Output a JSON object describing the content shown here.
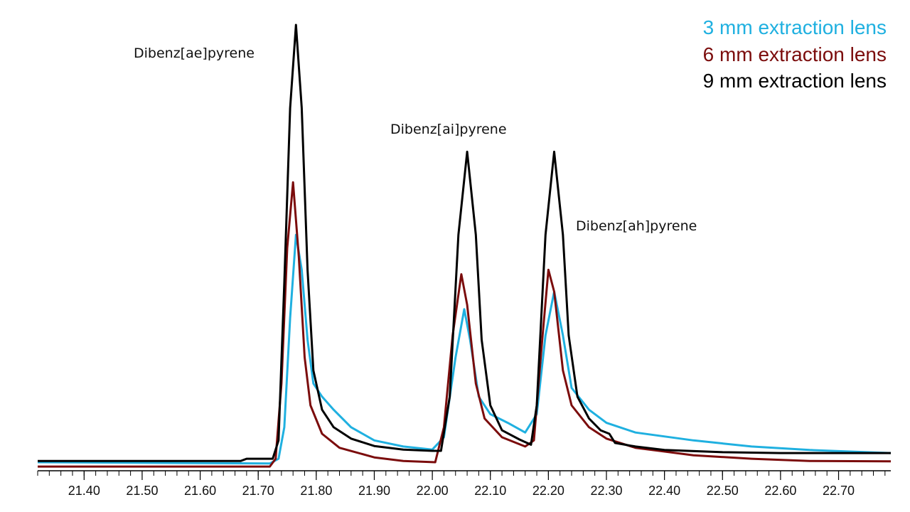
{
  "chart_data": {
    "type": "line",
    "title": "",
    "xlabel": "",
    "ylabel": "",
    "xlim": [
      21.32,
      22.79
    ],
    "ylim": [
      -2,
      100
    ],
    "grid": false,
    "legend_position": "top-right",
    "x_ticks": [
      "21.40",
      "21.50",
      "21.60",
      "21.70",
      "21.80",
      "21.90",
      "22.00",
      "22.10",
      "22.20",
      "22.30",
      "22.40",
      "22.50",
      "22.60",
      "22.70"
    ],
    "minor_tick_step": 0.02,
    "annotations": [
      {
        "text": "Dibenz[ae]pyrene"
      },
      {
        "text": "Dibenz[ai]pyrene"
      },
      {
        "text": "Dibenz[ah]pyrene"
      }
    ],
    "series": [
      {
        "name": "3 mm extraction lens",
        "color": "#1fb0e0",
        "x": [
          21.32,
          21.72,
          21.735,
          21.745,
          21.755,
          21.765,
          21.775,
          21.785,
          21.795,
          21.81,
          21.83,
          21.86,
          21.9,
          21.95,
          22.0,
          22.02,
          22.04,
          22.055,
          22.065,
          22.08,
          22.1,
          22.13,
          22.16,
          22.18,
          22.195,
          22.21,
          22.225,
          22.24,
          22.27,
          22.3,
          22.35,
          22.45,
          22.55,
          22.65,
          22.79
        ],
        "y": [
          0,
          -0.3,
          0.8,
          8,
          33,
          52,
          44,
          28,
          18,
          15,
          12,
          8,
          5,
          3.6,
          2.9,
          5.7,
          24,
          35,
          28,
          15,
          11,
          9,
          6.8,
          11,
          29,
          39,
          29,
          17,
          12,
          9,
          6.8,
          5,
          3.6,
          2.8,
          2.1
        ]
      },
      {
        "name": "6 mm extraction lens",
        "color": "#7b0c0c",
        "x": [
          21.32,
          21.72,
          21.73,
          21.74,
          21.75,
          21.76,
          21.77,
          21.78,
          21.79,
          21.81,
          21.84,
          21.9,
          21.95,
          22.005,
          22.02,
          22.035,
          22.05,
          22.06,
          22.075,
          22.09,
          22.12,
          22.16,
          22.175,
          22.19,
          22.2,
          22.21,
          22.225,
          22.24,
          22.27,
          22.3,
          22.35,
          22.45,
          22.55,
          22.65,
          22.79
        ],
        "y": [
          -1,
          -1,
          0.8,
          18,
          49,
          64,
          47,
          24,
          13,
          6.5,
          3.3,
          1.1,
          0.3,
          0,
          8,
          29,
          43,
          36,
          18,
          10,
          5.7,
          3.6,
          5,
          29,
          44,
          39,
          21,
          13,
          8,
          5.4,
          3.3,
          1.6,
          0.8,
          0.3,
          0.2
        ]
      },
      {
        "name": "9 mm extraction lens",
        "color": "#000000",
        "x": [
          21.32,
          21.67,
          21.68,
          21.725,
          21.735,
          21.745,
          21.755,
          21.765,
          21.775,
          21.785,
          21.795,
          21.81,
          21.83,
          21.86,
          21.9,
          21.95,
          22.0,
          22.015,
          22.03,
          22.045,
          22.06,
          22.075,
          22.085,
          22.1,
          22.12,
          22.15,
          22.17,
          22.18,
          22.195,
          22.21,
          22.225,
          22.235,
          22.25,
          22.27,
          22.29,
          22.305,
          22.315,
          22.35,
          22.4,
          22.5,
          22.6,
          22.79
        ],
        "y": [
          0.3,
          0.3,
          0.8,
          0.8,
          5,
          41,
          81,
          100,
          81,
          44,
          21,
          12,
          8,
          5.4,
          3.7,
          2.9,
          2.6,
          2.6,
          15,
          52,
          71,
          52,
          28,
          13,
          7.3,
          5.2,
          4,
          13,
          52,
          71,
          52,
          29,
          15,
          10,
          7.3,
          6.5,
          4.4,
          3.6,
          2.8,
          2.3,
          2.1,
          2.1
        ]
      }
    ]
  }
}
